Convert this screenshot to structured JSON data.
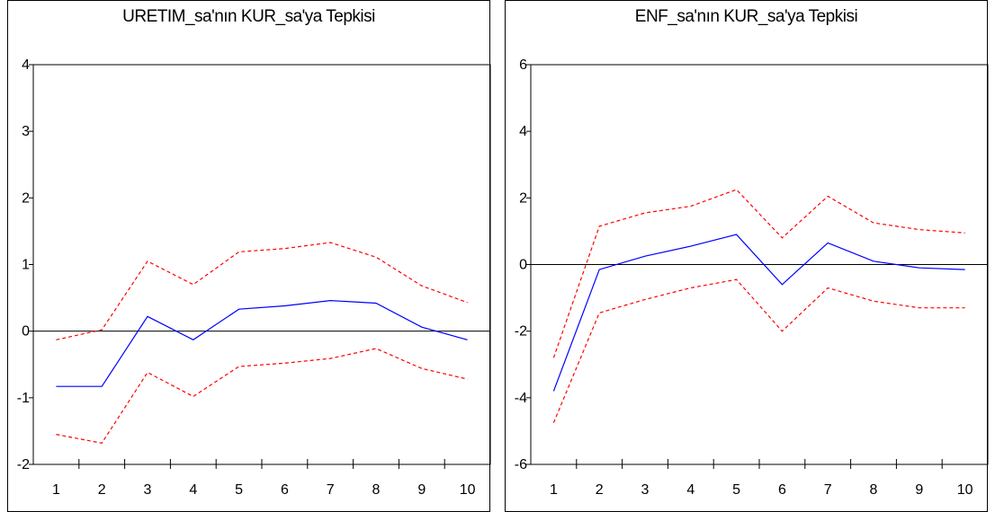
{
  "chart_data": [
    {
      "type": "line",
      "title": "URETIM_sa'nın KUR_sa'ya Tepkisi",
      "xlabel": "",
      "ylabel": "",
      "x": [
        1,
        2,
        3,
        4,
        5,
        6,
        7,
        8,
        9,
        10
      ],
      "ylim": [
        -2,
        4
      ],
      "yticks": [
        -2,
        -1,
        0,
        1,
        2,
        3,
        4
      ],
      "grid": false,
      "zero_line": true,
      "series": [
        {
          "role": "response",
          "color": "#0000ff",
          "style": "solid",
          "values": [
            -0.83,
            -0.83,
            0.22,
            -0.13,
            0.33,
            0.38,
            0.46,
            0.42,
            0.06,
            -0.13
          ]
        },
        {
          "role": "upper",
          "color": "#ff0000",
          "style": "dashed",
          "values": [
            -0.13,
            0.02,
            1.05,
            0.7,
            1.19,
            1.24,
            1.33,
            1.11,
            0.68,
            0.43
          ]
        },
        {
          "role": "lower",
          "color": "#ff0000",
          "style": "dashed",
          "values": [
            -1.55,
            -1.68,
            -0.62,
            -0.98,
            -0.53,
            -0.48,
            -0.41,
            -0.26,
            -0.56,
            -0.72
          ]
        }
      ]
    },
    {
      "type": "line",
      "title": "ENF_sa'nın KUR_sa'ya Tepkisi",
      "xlabel": "",
      "ylabel": "",
      "x": [
        1,
        2,
        3,
        4,
        5,
        6,
        7,
        8,
        9,
        10
      ],
      "ylim": [
        -6,
        6
      ],
      "yticks": [
        -6,
        -4,
        -2,
        0,
        2,
        4,
        6
      ],
      "grid": false,
      "zero_line": true,
      "series": [
        {
          "role": "response",
          "color": "#0000ff",
          "style": "solid",
          "values": [
            -3.8,
            -0.15,
            0.25,
            0.55,
            0.9,
            -0.6,
            0.65,
            0.1,
            -0.1,
            -0.15
          ]
        },
        {
          "role": "upper",
          "color": "#ff0000",
          "style": "dashed",
          "values": [
            -2.8,
            1.15,
            1.55,
            1.75,
            2.25,
            0.8,
            2.05,
            1.25,
            1.05,
            0.95
          ]
        },
        {
          "role": "lower",
          "color": "#ff0000",
          "style": "dashed",
          "values": [
            -4.75,
            -1.45,
            -1.05,
            -0.7,
            -0.45,
            -2.0,
            -0.7,
            -1.1,
            -1.3,
            -1.3
          ]
        }
      ]
    }
  ]
}
